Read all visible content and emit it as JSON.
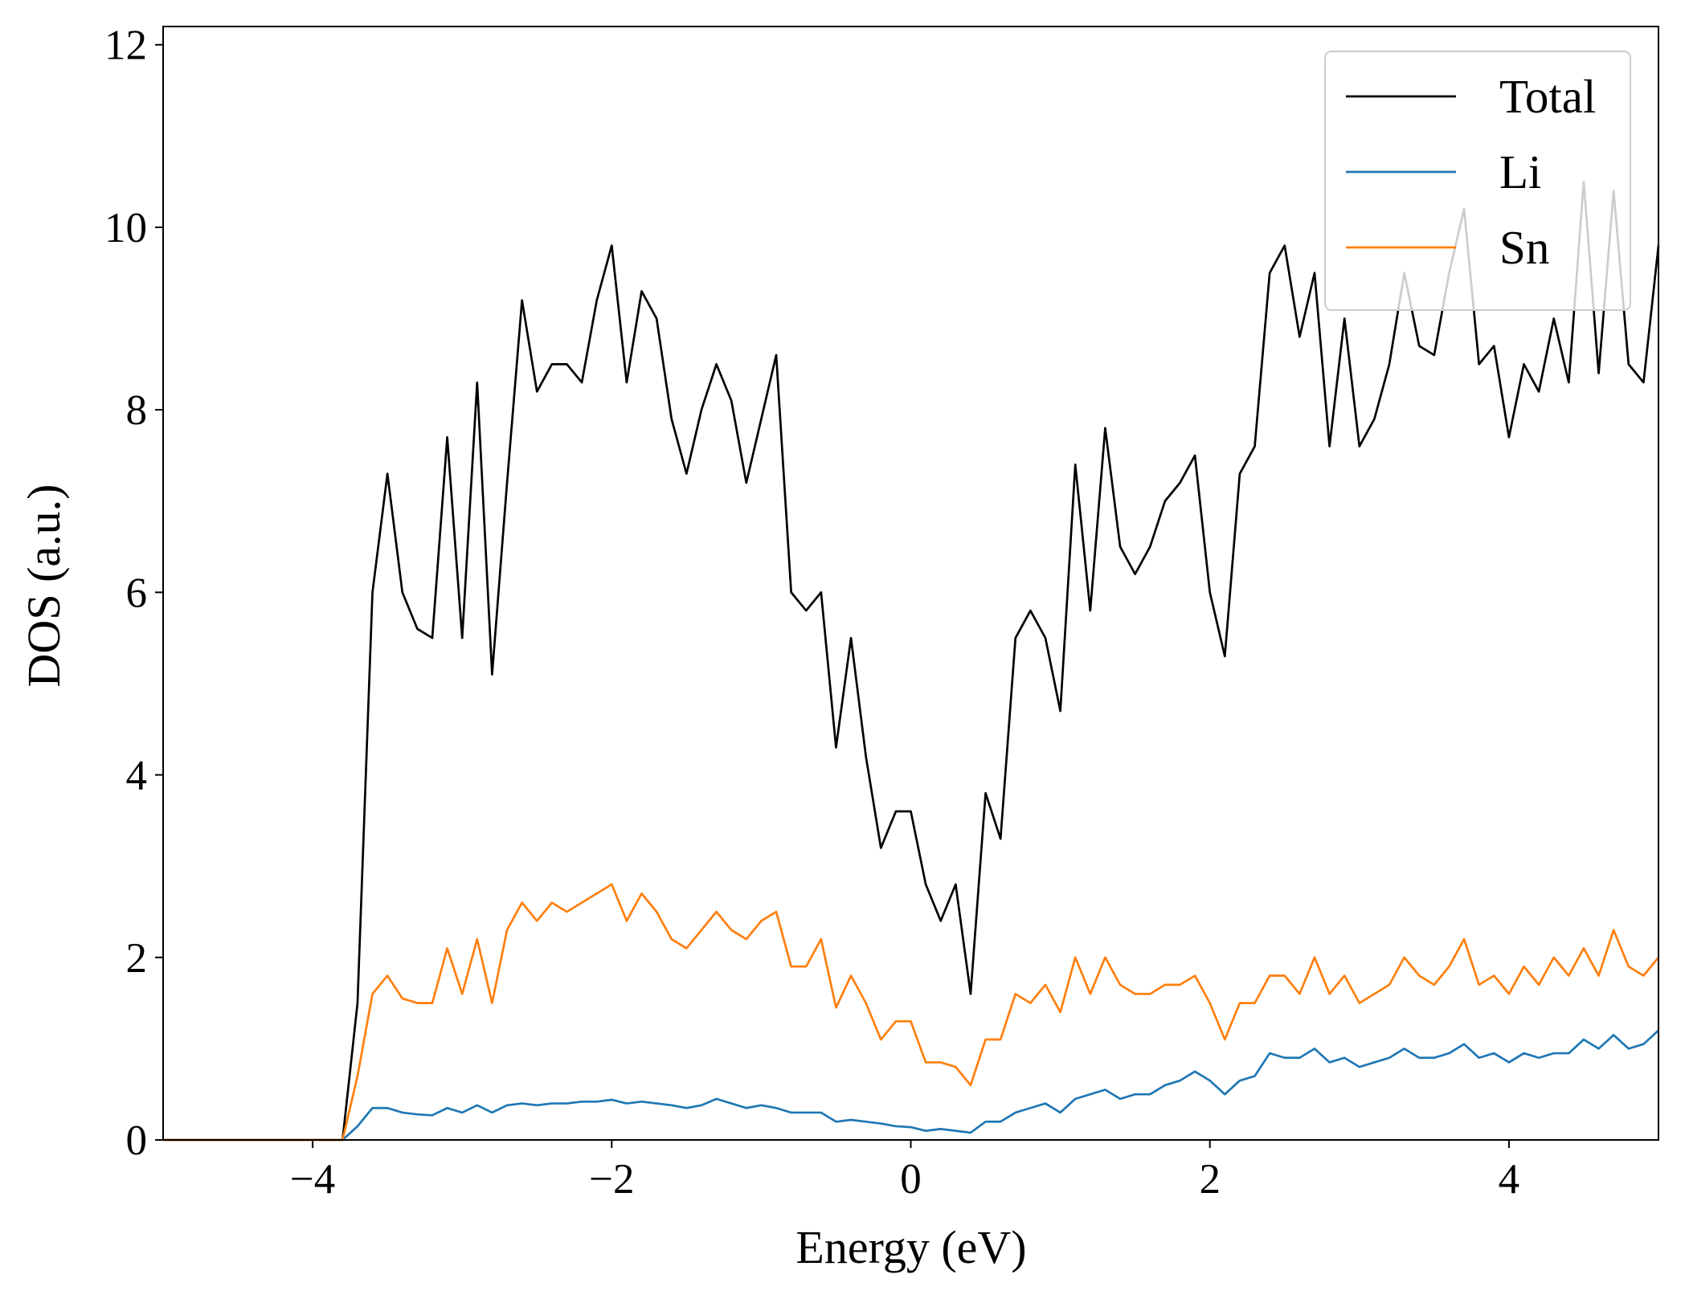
{
  "chart_data": {
    "type": "line",
    "xlabel": "Energy (eV)",
    "ylabel": "DOS (a.u.)",
    "x": [
      -5,
      -4.9,
      -4.8,
      -4.7,
      -4.6,
      -4.5,
      -4.4,
      -4.3,
      -4.2,
      -4.1,
      -4,
      -3.9,
      -3.8,
      -3.7,
      -3.6,
      -3.5,
      -3.4,
      -3.3,
      -3.2,
      -3.1,
      -3,
      -2.9,
      -2.8,
      -2.7,
      -2.6,
      -2.5,
      -2.4,
      -2.3,
      -2.2,
      -2.1,
      -2,
      -1.9,
      -1.8,
      -1.7,
      -1.6,
      -1.5,
      -1.4,
      -1.3,
      -1.2,
      -1.1,
      -1,
      -0.9,
      -0.8,
      -0.7,
      -0.6,
      -0.5,
      -0.4,
      -0.3,
      -0.2,
      -0.1,
      0,
      0.1,
      0.2,
      0.3,
      0.4,
      0.5,
      0.6,
      0.7,
      0.8,
      0.9,
      1,
      1.1,
      1.2,
      1.3,
      1.4,
      1.5,
      1.6,
      1.7,
      1.8,
      1.9,
      2,
      2.1,
      2.2,
      2.3,
      2.4,
      2.5,
      2.6,
      2.7,
      2.8,
      2.9,
      3,
      3.1,
      3.2,
      3.3,
      3.4,
      3.5,
      3.6,
      3.7,
      3.8,
      3.9,
      4,
      4.1,
      4.2,
      4.3,
      4.4,
      4.5,
      4.6,
      4.7,
      4.8,
      4.9,
      5
    ],
    "series": [
      {
        "name": "Total",
        "color": "#000000",
        "values": [
          0,
          0,
          0,
          0,
          0,
          0,
          0,
          0,
          0,
          0,
          0,
          0,
          0,
          1.5,
          6.0,
          7.3,
          6.0,
          5.6,
          5.5,
          7.7,
          5.5,
          8.3,
          5.1,
          7.2,
          9.2,
          8.2,
          8.5,
          8.5,
          8.3,
          9.2,
          9.8,
          8.3,
          9.3,
          9.0,
          7.9,
          7.3,
          8.0,
          8.5,
          8.1,
          7.2,
          7.9,
          8.6,
          6.0,
          5.8,
          6.0,
          4.3,
          5.5,
          4.2,
          3.2,
          3.6,
          3.6,
          2.8,
          2.4,
          2.8,
          1.6,
          3.8,
          3.3,
          5.5,
          5.8,
          5.5,
          4.7,
          7.4,
          5.8,
          7.8,
          6.5,
          6.2,
          6.5,
          7.0,
          7.2,
          7.5,
          6.0,
          5.3,
          7.3,
          7.6,
          9.5,
          9.8,
          8.8,
          9.5,
          7.6,
          9.0,
          7.6,
          7.9,
          8.5,
          9.5,
          8.7,
          8.6,
          9.5,
          10.2,
          8.5,
          8.7,
          7.7,
          8.5,
          8.2,
          9.0,
          8.3,
          10.5,
          8.4,
          10.4,
          8.5,
          8.3,
          9.8
        ]
      },
      {
        "name": "Li",
        "color": "#1f77b4",
        "values": [
          0,
          0,
          0,
          0,
          0,
          0,
          0,
          0,
          0,
          0,
          0,
          0,
          0,
          0.15,
          0.35,
          0.35,
          0.3,
          0.28,
          0.27,
          0.35,
          0.3,
          0.38,
          0.3,
          0.38,
          0.4,
          0.38,
          0.4,
          0.4,
          0.42,
          0.42,
          0.44,
          0.4,
          0.42,
          0.4,
          0.38,
          0.35,
          0.38,
          0.45,
          0.4,
          0.35,
          0.38,
          0.35,
          0.3,
          0.3,
          0.3,
          0.2,
          0.22,
          0.2,
          0.18,
          0.15,
          0.14,
          0.1,
          0.12,
          0.1,
          0.08,
          0.2,
          0.2,
          0.3,
          0.35,
          0.4,
          0.3,
          0.45,
          0.5,
          0.55,
          0.45,
          0.5,
          0.5,
          0.6,
          0.65,
          0.75,
          0.65,
          0.5,
          0.65,
          0.7,
          0.95,
          0.9,
          0.9,
          1.0,
          0.85,
          0.9,
          0.8,
          0.85,
          0.9,
          1.0,
          0.9,
          0.9,
          0.95,
          1.05,
          0.9,
          0.95,
          0.85,
          0.95,
          0.9,
          0.95,
          0.95,
          1.1,
          1.0,
          1.15,
          1.0,
          1.05,
          1.2
        ]
      },
      {
        "name": "Sn",
        "color": "#ff7f0e",
        "values": [
          0,
          0,
          0,
          0,
          0,
          0,
          0,
          0,
          0,
          0,
          0,
          0,
          0,
          0.7,
          1.6,
          1.8,
          1.55,
          1.5,
          1.5,
          2.1,
          1.6,
          2.2,
          1.5,
          2.3,
          2.6,
          2.4,
          2.6,
          2.5,
          2.6,
          2.7,
          2.8,
          2.4,
          2.7,
          2.5,
          2.2,
          2.1,
          2.3,
          2.5,
          2.3,
          2.2,
          2.4,
          2.5,
          1.9,
          1.9,
          2.2,
          1.45,
          1.8,
          1.5,
          1.1,
          1.3,
          1.3,
          0.85,
          0.85,
          0.8,
          0.6,
          1.1,
          1.1,
          1.6,
          1.5,
          1.7,
          1.4,
          2.0,
          1.6,
          2.0,
          1.7,
          1.6,
          1.6,
          1.7,
          1.7,
          1.8,
          1.5,
          1.1,
          1.5,
          1.5,
          1.8,
          1.8,
          1.6,
          2.0,
          1.6,
          1.8,
          1.5,
          1.6,
          1.7,
          2.0,
          1.8,
          1.7,
          1.9,
          2.2,
          1.7,
          1.8,
          1.6,
          1.9,
          1.7,
          2.0,
          1.8,
          2.1,
          1.8,
          2.3,
          1.9,
          1.8,
          2.0
        ]
      }
    ],
    "xlim": [
      -5,
      5
    ],
    "xticks": [
      {
        "value": -4,
        "label": "−4"
      },
      {
        "value": -2,
        "label": "−2"
      },
      0,
      2,
      4
    ],
    "ylim": [
      0,
      12.2
    ],
    "yticks": [
      0,
      2,
      4,
      6,
      8,
      10,
      12
    ],
    "grid": false,
    "legend": "upper right"
  }
}
